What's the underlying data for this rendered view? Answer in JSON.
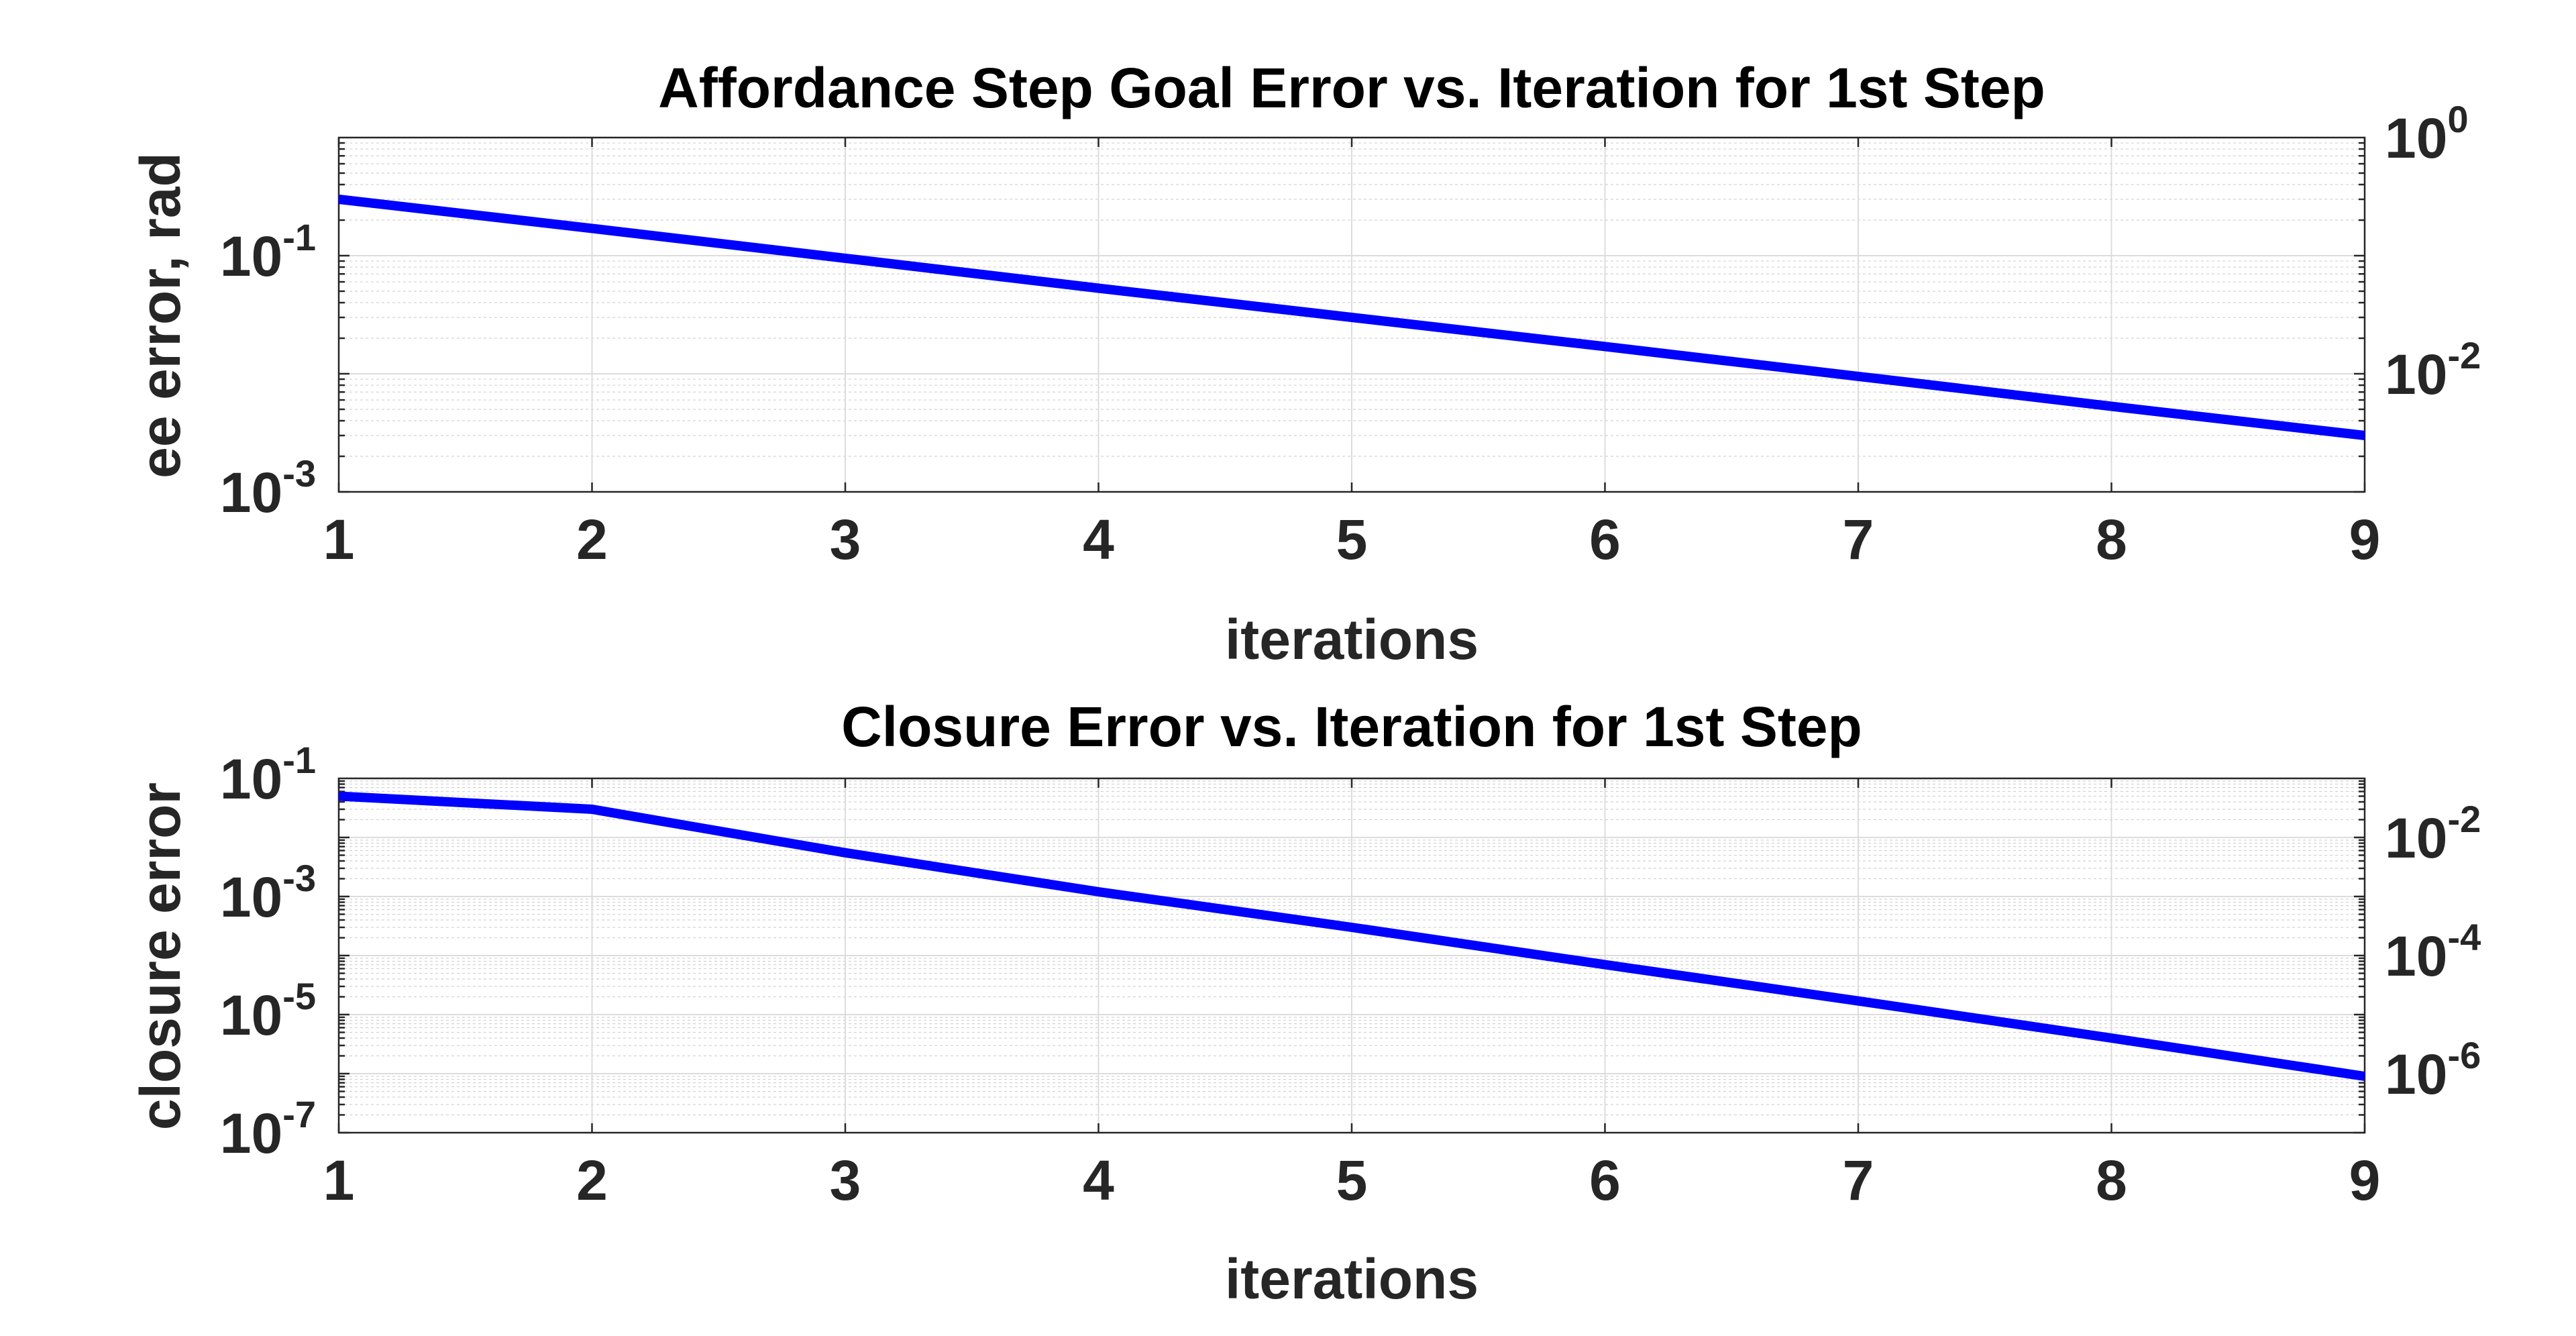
{
  "chart_data": [
    {
      "type": "line",
      "title": "Affordance Step Goal Error vs. Iteration for 1st Step",
      "xlabel": "iterations",
      "ylabel": "ee error, rad",
      "x_scale": "linear",
      "y_scale": "log",
      "xlim": [
        1,
        9
      ],
      "ylim": [
        0.001,
        1
      ],
      "grid": true,
      "xticks": [
        "1",
        "2",
        "3",
        "4",
        "5",
        "6",
        "7",
        "8",
        "9"
      ],
      "yticks_left": [
        {
          "value": 0.001,
          "base": "10",
          "exp": "-3"
        },
        {
          "value": 0.1,
          "base": "10",
          "exp": "-1"
        }
      ],
      "yticks_right": [
        {
          "value": 0.01,
          "base": "10",
          "exp": "-2"
        },
        {
          "value": 1,
          "base": "10",
          "exp": "0"
        }
      ],
      "series": [
        {
          "color": "#0000ff",
          "x": [
            1,
            2,
            3,
            4,
            5,
            6,
            7,
            8,
            9
          ],
          "y": [
            0.3,
            0.17,
            0.095,
            0.053,
            0.03,
            0.017,
            0.0095,
            0.0053,
            0.003
          ]
        }
      ]
    },
    {
      "type": "line",
      "title": "Closure Error vs. Iteration for 1st Step",
      "xlabel": "iterations",
      "ylabel": "closure error",
      "x_scale": "linear",
      "y_scale": "log",
      "xlim": [
        1,
        9
      ],
      "ylim": [
        1e-07,
        0.1
      ],
      "grid": true,
      "xticks": [
        "1",
        "2",
        "3",
        "4",
        "5",
        "6",
        "7",
        "8",
        "9"
      ],
      "yticks_left": [
        {
          "value": 1e-07,
          "base": "10",
          "exp": "-7"
        },
        {
          "value": 1e-05,
          "base": "10",
          "exp": "-5"
        },
        {
          "value": 0.001,
          "base": "10",
          "exp": "-3"
        },
        {
          "value": 0.1,
          "base": "10",
          "exp": "-1"
        }
      ],
      "yticks_right": [
        {
          "value": 1e-06,
          "base": "10",
          "exp": "-6"
        },
        {
          "value": 0.0001,
          "base": "10",
          "exp": "-4"
        },
        {
          "value": 0.01,
          "base": "10",
          "exp": "-2"
        }
      ],
      "series": [
        {
          "color": "#0000ff",
          "x": [
            1,
            2,
            3,
            4,
            5,
            6,
            7,
            8,
            9
          ],
          "y": [
            0.05,
            0.03,
            0.0055,
            0.0012,
            0.0003,
            7e-05,
            1.7e-05,
            4e-06,
            9e-07
          ]
        }
      ]
    }
  ]
}
